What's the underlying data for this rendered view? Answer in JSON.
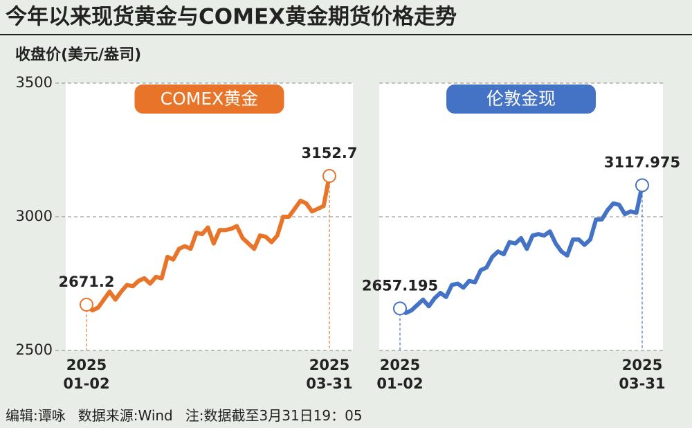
{
  "title": "今年以来现货黄金与COMEX黄金期货价格走势",
  "y_label": "收盘价(美元/盎司)",
  "footer": [
    "编辑:谭咏",
    "数据来源:Wind",
    "注:数据截至3月31日19：05"
  ],
  "chart_data": [
    {
      "type": "line",
      "title": "COMEX黄金",
      "color": "#e8742a",
      "categories": [
        "2025\n01-02",
        null,
        null,
        null,
        null,
        null,
        null,
        null,
        null,
        null,
        null,
        null,
        null,
        null,
        null,
        null,
        null,
        null,
        null,
        null,
        null,
        null,
        null,
        null,
        null,
        null,
        null,
        null,
        null,
        null,
        null,
        null,
        null,
        null,
        null,
        null,
        null,
        null,
        null,
        null,
        null,
        null,
        "2025\n03-31"
      ],
      "values": [
        2671.2,
        2650,
        2660,
        2690,
        2720,
        2690,
        2720,
        2745,
        2740,
        2760,
        2770,
        2750,
        2775,
        2770,
        2850,
        2840,
        2880,
        2890,
        2880,
        2940,
        2935,
        2960,
        2900,
        2950,
        2950,
        2955,
        2965,
        2920,
        2900,
        2880,
        2930,
        2925,
        2905,
        2930,
        3000,
        3000,
        3030,
        3060,
        3050,
        3020,
        3030,
        3040,
        3152.7
      ],
      "ylim": [
        2500,
        3500
      ],
      "yticks": [
        2500,
        3000,
        3500
      ],
      "grid": true
    },
    {
      "type": "line",
      "title": "伦敦金现",
      "color": "#4472c4",
      "categories": [
        "2025\n01-02",
        null,
        null,
        null,
        null,
        null,
        null,
        null,
        null,
        null,
        null,
        null,
        null,
        null,
        null,
        null,
        null,
        null,
        null,
        null,
        null,
        null,
        null,
        null,
        null,
        null,
        null,
        null,
        null,
        null,
        null,
        null,
        null,
        null,
        null,
        null,
        null,
        null,
        null,
        null,
        null,
        null,
        "2025\n03-31"
      ],
      "values": [
        2657.195,
        2640,
        2650,
        2670,
        2690,
        2665,
        2695,
        2715,
        2700,
        2745,
        2750,
        2735,
        2760,
        2755,
        2800,
        2810,
        2850,
        2870,
        2860,
        2905,
        2900,
        2920,
        2880,
        2930,
        2935,
        2930,
        2945,
        2900,
        2870,
        2855,
        2915,
        2915,
        2895,
        2915,
        2990,
        2990,
        3025,
        3050,
        3045,
        3010,
        3020,
        3015,
        3117.975
      ],
      "ylim": [
        2500,
        3500
      ],
      "yticks": [
        2500,
        3000,
        3500
      ],
      "grid": true
    }
  ]
}
